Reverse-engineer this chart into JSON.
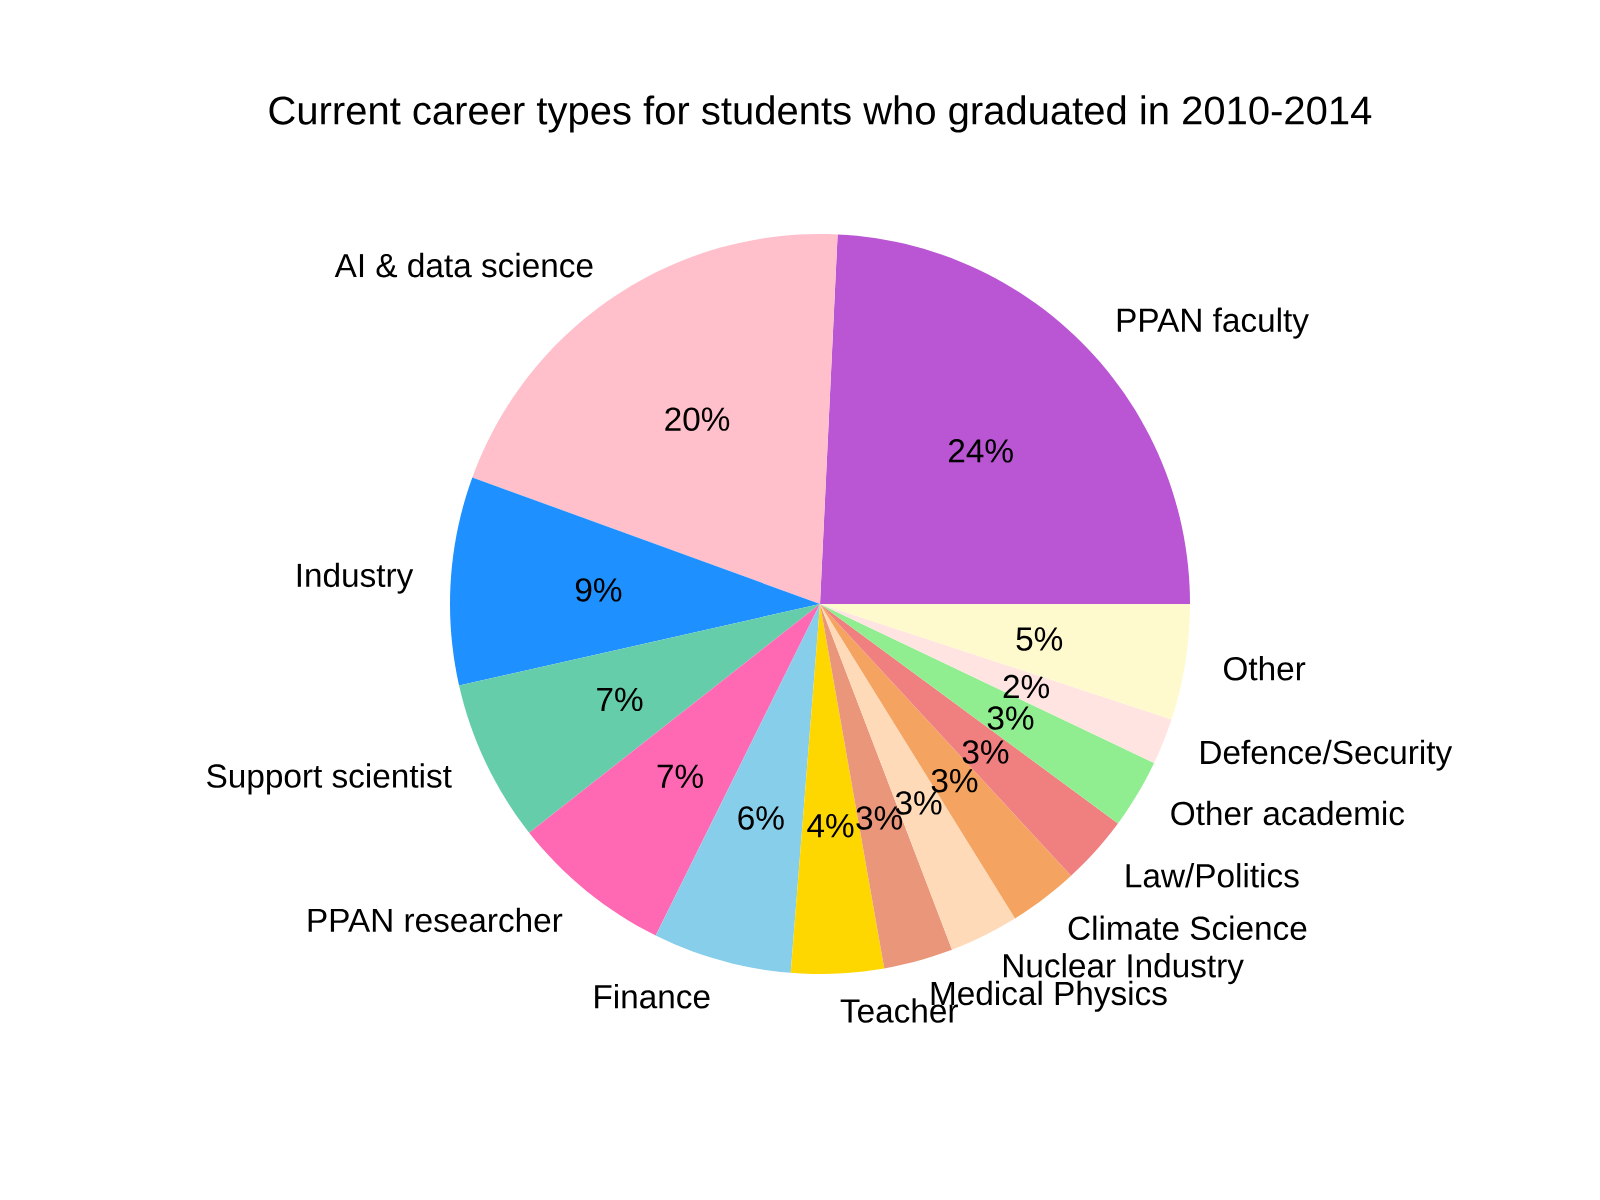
{
  "chart_data": {
    "type": "pie",
    "title": "Current career types for students who graduated in 2010-2014",
    "categories": [
      "PPAN faculty",
      "AI & data science",
      "Industry",
      "Support scientist",
      "PPAN researcher",
      "Finance",
      "Teacher",
      "Medical Physics",
      "Nuclear Industry",
      "Climate Science",
      "Law/Politics",
      "Other academic",
      "Defence/Security",
      "Other"
    ],
    "values": [
      24,
      20,
      9,
      7,
      7,
      6,
      4,
      3,
      3,
      3,
      3,
      3,
      2,
      5
    ],
    "colors": [
      "#ba55d3",
      "#ffc0cb",
      "#1e90ff",
      "#66cdaa",
      "#ff69b4",
      "#87ceeb",
      "#ffd700",
      "#e9967a",
      "#ffdab9",
      "#f4a460",
      "#f08080",
      "#90ee90",
      "#ffe4e1",
      "#fffacd"
    ],
    "value_labels": [
      "24%",
      "20%",
      "9%",
      "7%",
      "7%",
      "6%",
      "4%",
      "3%",
      "3%",
      "3%",
      "3%",
      "3%",
      "2%",
      "5%"
    ]
  }
}
